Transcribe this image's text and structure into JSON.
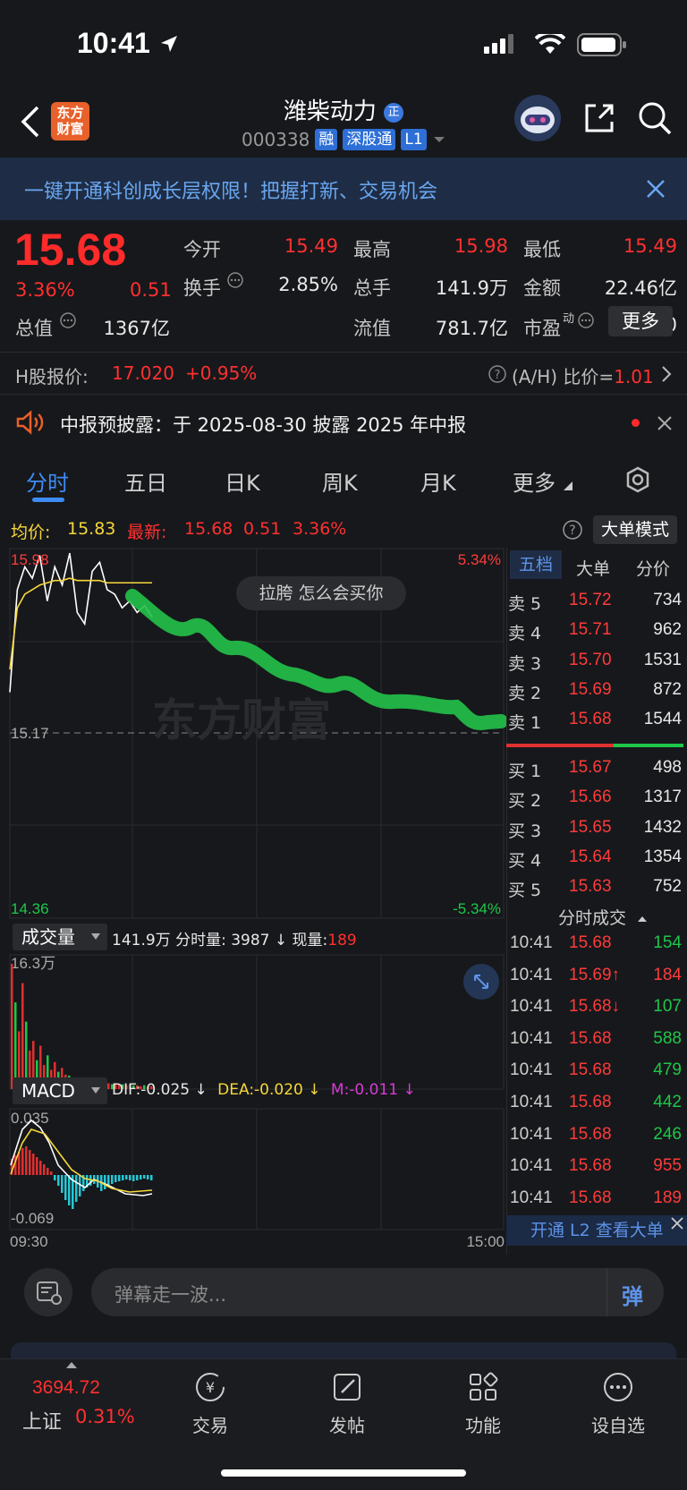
{
  "status_bar": {
    "time": "10:41"
  },
  "header": {
    "logo_line1": "东方",
    "logo_line2": "财富",
    "stock_name": "潍柴动力",
    "stock_badge": "正",
    "stock_code": "000338",
    "tag_margin": "融",
    "tag_connect": "深股通",
    "tag_level": "L1"
  },
  "banner": {
    "text": "一键开通科创成长层权限！把握打新、交易机会"
  },
  "quote": {
    "price": "15.68",
    "change_pct": "3.36%",
    "change_amt": "0.51",
    "fields": [
      {
        "label": "今开",
        "value": "15.49",
        "color": "red"
      },
      {
        "label": "最高",
        "value": "15.98",
        "color": "red"
      },
      {
        "label": "最低",
        "value": "15.49",
        "color": "red"
      },
      {
        "label": "换手",
        "value": "2.85%",
        "color": "white"
      },
      {
        "label": "总手",
        "value": "141.9万",
        "color": "white"
      },
      {
        "label": "金额",
        "value": "22.46亿",
        "color": "white"
      },
      {
        "label": "总值",
        "value": "1367亿",
        "color": "white"
      },
      {
        "label": "流值",
        "value": "781.7亿",
        "color": "white"
      },
      {
        "label": "市盈",
        "value": "12.60",
        "color": "white",
        "sup": "动"
      }
    ],
    "more_button": "更多"
  },
  "hk": {
    "label": "H股报价:",
    "price": "17.020",
    "change": "+0.95%",
    "ratio_label": "(A/H) 比价=",
    "ratio_value": "1.01"
  },
  "notice": {
    "text": "中报预披露：于 2025-08-30 披露 2025 年中报"
  },
  "tabs": [
    "分时",
    "五日",
    "日K",
    "周K",
    "月K",
    "更多"
  ],
  "avg_row": {
    "avg_label": "均价:",
    "avg_value": "15.83",
    "latest_label": "最新:",
    "latest_value": "15.68",
    "latest_change": "0.51",
    "latest_pct": "3.36%",
    "big_order_button": "大单模式"
  },
  "chart_data": {
    "type": "line",
    "title": "",
    "price_axis": {
      "top": "15.98",
      "mid": "15.17",
      "bottom": "14.36",
      "top_pct": "5.34%",
      "bottom_pct": "-5.34%"
    },
    "watermark": "东方财富",
    "danmaku": "拉胯 怎么会买你",
    "x_labels": [
      "09:30",
      "15:00"
    ],
    "price_series": [
      15.35,
      15.8,
      15.9,
      15.85,
      15.95,
      15.75,
      15.9,
      15.82,
      15.96,
      15.7,
      15.65,
      15.88,
      15.92,
      15.8,
      15.78,
      15.72,
      15.75,
      15.7,
      15.73,
      15.68
    ],
    "avg_series": [
      15.45,
      15.72,
      15.78,
      15.8,
      15.82,
      15.83,
      15.84,
      15.84,
      15.85,
      15.84,
      15.84,
      15.84,
      15.84,
      15.83,
      15.83,
      15.83,
      15.83,
      15.83,
      15.83,
      15.83
    ],
    "volume_label": "成交量",
    "volume_total": "141.9万",
    "volume_detail": "分时量: 3987 ↓",
    "volume_now_label": "现量:",
    "volume_now": "189",
    "volume_axis_top": "16.3万",
    "macd": {
      "label": "MACD",
      "dif": "DIF:-0.025 ↓",
      "dea": "DEA:-0.020 ↓",
      "m": "M:-0.011 ↓",
      "top": "0.035",
      "bottom": "-0.069"
    }
  },
  "order_book": {
    "tabs": [
      "五档",
      "大单",
      "分价"
    ],
    "asks": [
      {
        "label": "卖 5",
        "price": "15.72",
        "qty": "734"
      },
      {
        "label": "卖 4",
        "price": "15.71",
        "qty": "962"
      },
      {
        "label": "卖 3",
        "price": "15.70",
        "qty": "1531"
      },
      {
        "label": "卖 2",
        "price": "15.69",
        "qty": "872"
      },
      {
        "label": "卖 1",
        "price": "15.68",
        "qty": "1544"
      }
    ],
    "bids": [
      {
        "label": "买 1",
        "price": "15.67",
        "qty": "498"
      },
      {
        "label": "买 2",
        "price": "15.66",
        "qty": "1317"
      },
      {
        "label": "买 3",
        "price": "15.65",
        "qty": "1432"
      },
      {
        "label": "买 4",
        "price": "15.64",
        "qty": "1354"
      },
      {
        "label": "买 5",
        "price": "15.63",
        "qty": "752"
      }
    ],
    "ticks_title": "分时成交",
    "ticks": [
      {
        "time": "10:41",
        "price": "15.68",
        "vol": "154",
        "color": "green"
      },
      {
        "time": "10:41",
        "price": "15.69↑",
        "vol": "184",
        "color": "red"
      },
      {
        "time": "10:41",
        "price": "15.68↓",
        "vol": "107",
        "color": "green"
      },
      {
        "time": "10:41",
        "price": "15.68",
        "vol": "588",
        "color": "green"
      },
      {
        "time": "10:41",
        "price": "15.68",
        "vol": "479",
        "color": "green"
      },
      {
        "time": "10:41",
        "price": "15.68",
        "vol": "442",
        "color": "green"
      },
      {
        "time": "10:41",
        "price": "15.68",
        "vol": "246",
        "color": "green"
      },
      {
        "time": "10:41",
        "price": "15.68",
        "vol": "955",
        "color": "red"
      },
      {
        "time": "10:41",
        "price": "15.68",
        "vol": "189",
        "color": "red"
      }
    ],
    "l2_promo": "开通 L2 查看大单"
  },
  "danmu": {
    "placeholder": "弹幕走一波...",
    "send": "弹"
  },
  "bottom_nav": {
    "index_value": "3694.72",
    "index_name": "上证",
    "index_pct": "0.31%",
    "items": [
      "交易",
      "发帖",
      "功能",
      "设自选"
    ]
  }
}
